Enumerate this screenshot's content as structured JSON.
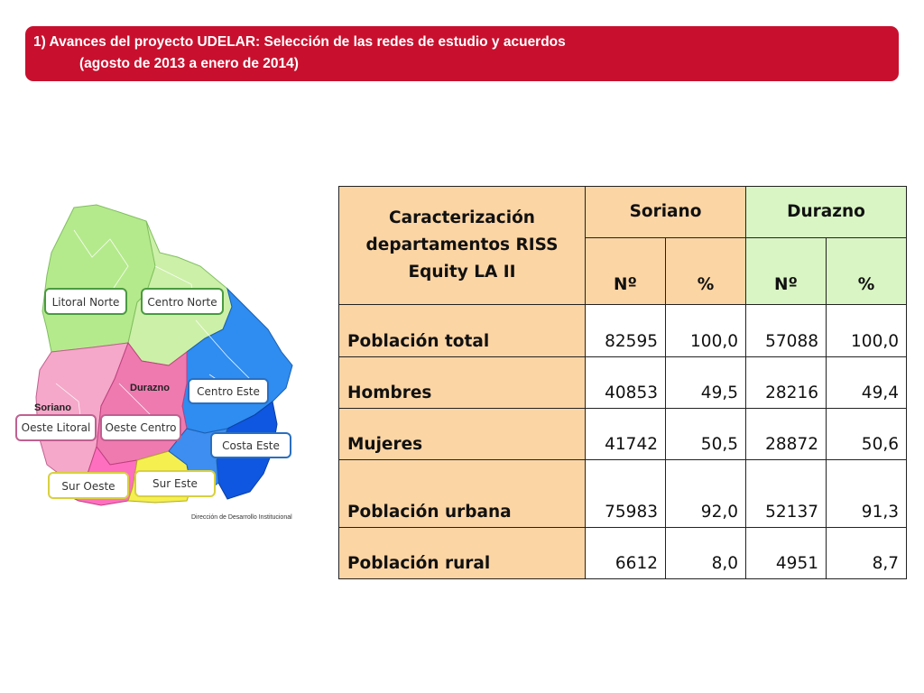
{
  "banner": {
    "line1": "1) Avances del proyecto UDELAR: Selección de las redes de estudio y acuerdos",
    "line2": "(agosto de 2013 a enero de 2014)"
  },
  "map": {
    "regions": [
      "Litoral Norte",
      "Centro Norte",
      "Centro Este",
      "Costa Este",
      "Oeste Litoral",
      "Oeste Centro",
      "Sur Oeste",
      "Sur Este"
    ],
    "dept_labels": [
      "Soriano",
      "Durazno"
    ],
    "credit": "Dirección de Desarrollo Institucional"
  },
  "table": {
    "header_title": "Caracterización departamentos RISS Equity LA II",
    "col_groups": [
      "Soriano",
      "Durazno"
    ],
    "sub_headers": [
      "Nº",
      "%",
      "Nº",
      "%"
    ],
    "rows": [
      {
        "label": "Población total",
        "values": [
          "82595",
          "100,0",
          "57088",
          "100,0"
        ]
      },
      {
        "label": "Hombres",
        "values": [
          "40853",
          "49,5",
          "28216",
          "49,4"
        ]
      },
      {
        "label": "Mujeres",
        "values": [
          "41742",
          "50,5",
          "28872",
          "50,6"
        ]
      },
      {
        "label": "Población urbana",
        "values": [
          "75983",
          "92,0",
          "52137",
          "91,3"
        ]
      },
      {
        "label": "Población rural",
        "values": [
          "6612",
          "8,0",
          "4951",
          "8,7"
        ]
      }
    ]
  },
  "colors": {
    "banner": "#c8102e",
    "header_orange": "#fcd5a5",
    "header_green": "#d9f5c4",
    "north_green": "#b5ea8c",
    "pink": "#ee7ab0",
    "blue": "#2f8cf0",
    "yellow": "#f5f050"
  }
}
